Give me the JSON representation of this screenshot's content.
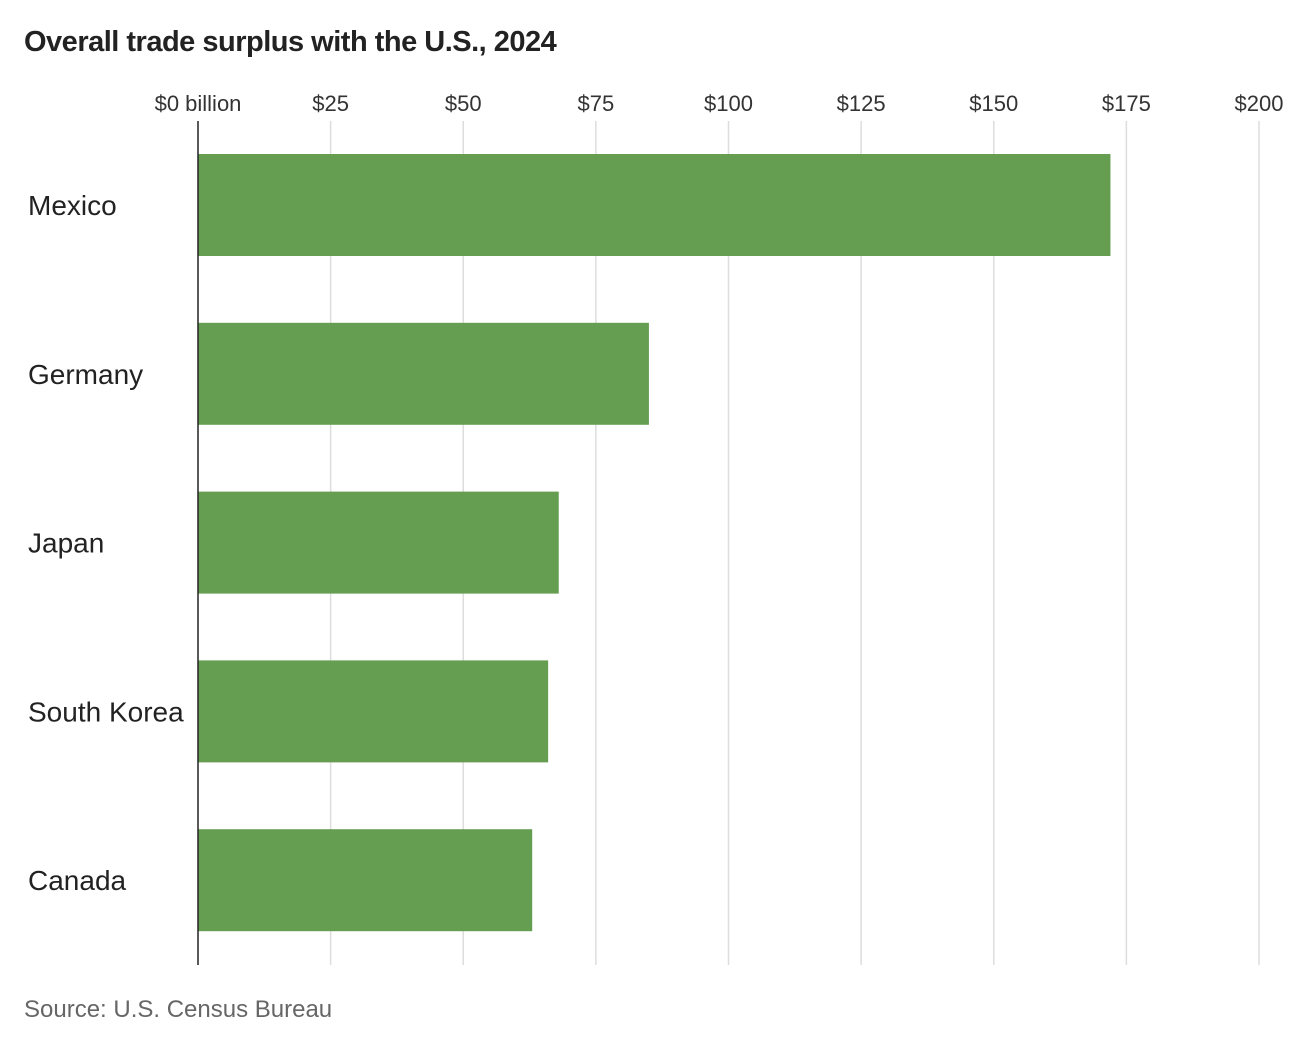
{
  "chart_data": {
    "type": "bar",
    "orientation": "horizontal",
    "title": "Overall trade surplus with the U.S., 2024",
    "categories": [
      "Mexico",
      "Germany",
      "Japan",
      "South Korea",
      "Canada"
    ],
    "values": [
      172,
      85,
      68,
      66,
      63
    ],
    "xlim": [
      0,
      200
    ],
    "xticks": [
      0,
      25,
      50,
      75,
      100,
      125,
      150,
      175,
      200
    ],
    "xtick_labels": [
      "$0 billion",
      "$25",
      "$50",
      "$75",
      "$100",
      "$125",
      "$150",
      "$175",
      "$200"
    ],
    "xlabel": "",
    "ylabel": "",
    "grid": true,
    "bar_color": "#669e51",
    "source": "Source: U.S. Census Bureau"
  }
}
